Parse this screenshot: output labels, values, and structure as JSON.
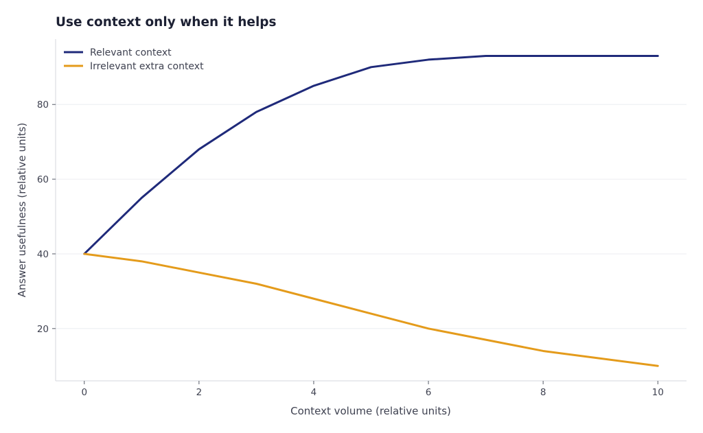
{
  "chart_data": {
    "type": "line",
    "title": "Use context only when it helps",
    "xlabel": "Context volume (relative units)",
    "ylabel": "Answer usefulness (relative units)",
    "xlim": [
      -0.5,
      10.5
    ],
    "ylim": [
      6,
      97.5
    ],
    "x_ticks": [
      0,
      2,
      4,
      6,
      8,
      10
    ],
    "y_ticks": [
      20,
      40,
      60,
      80
    ],
    "grid": "horizontal",
    "legend_position": "top-left",
    "x": [
      0,
      1,
      2,
      3,
      4,
      5,
      6,
      7,
      8,
      9,
      10
    ],
    "series": [
      {
        "name": "Relevant context",
        "color": "#1f2a7a",
        "values": [
          40,
          55,
          68,
          78,
          85,
          90,
          92,
          93,
          93,
          93,
          93
        ]
      },
      {
        "name": "Irrelevant extra context",
        "color": "#e49b1b",
        "values": [
          40,
          38,
          35,
          32,
          28,
          24,
          20,
          17,
          14,
          12,
          10
        ]
      }
    ]
  }
}
